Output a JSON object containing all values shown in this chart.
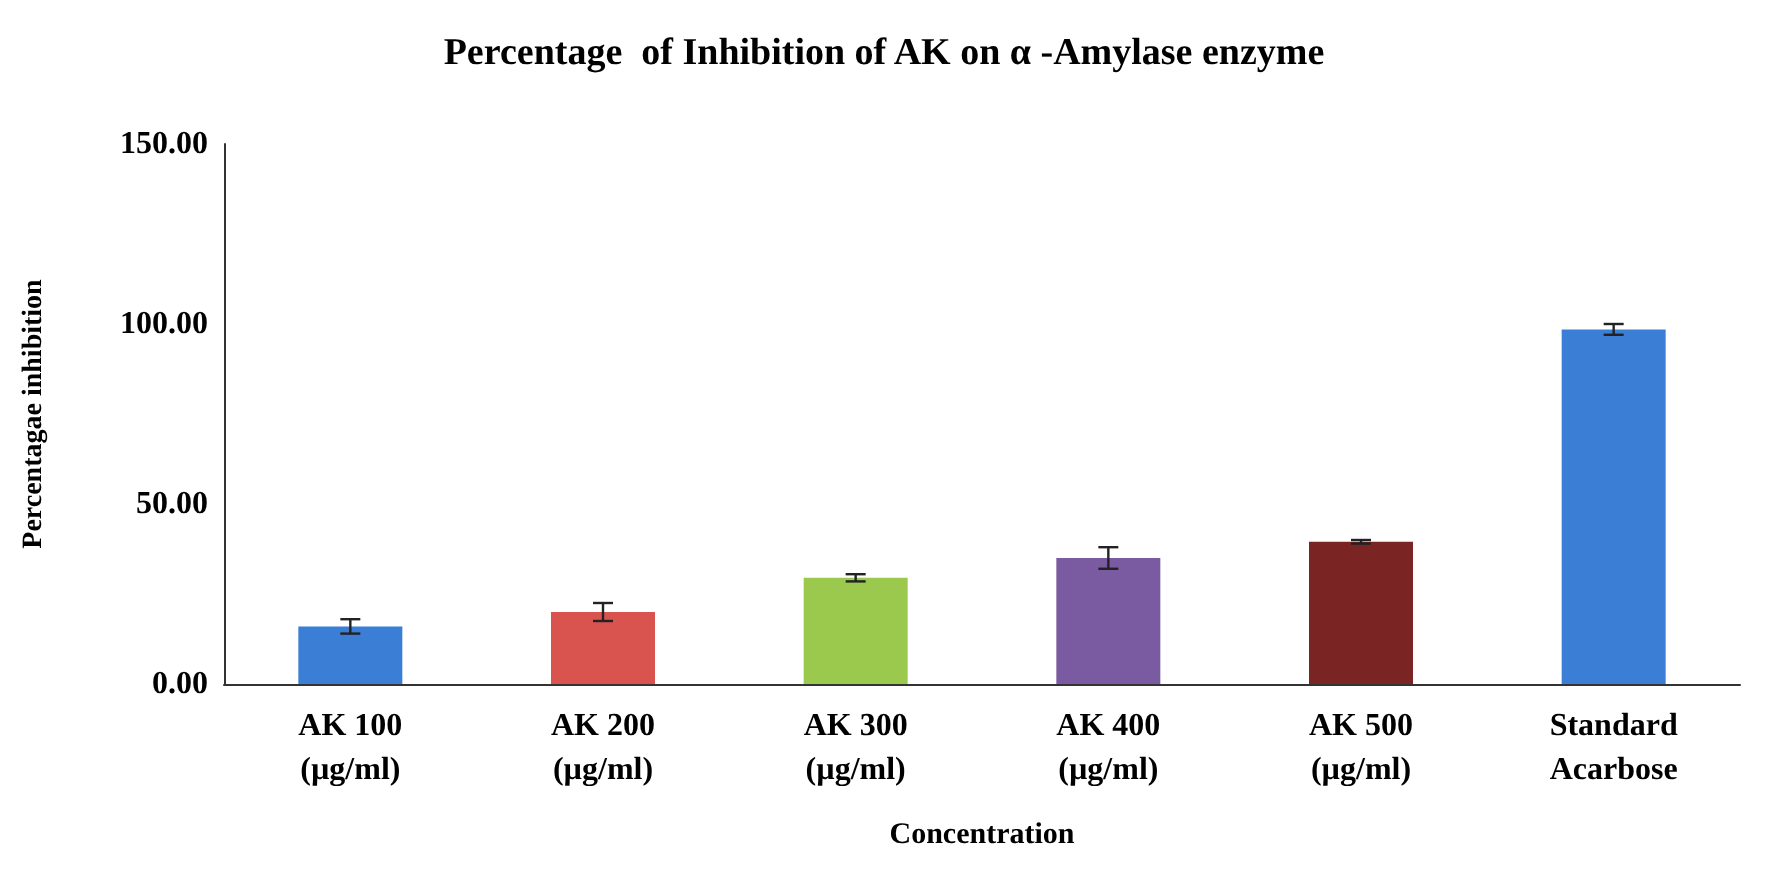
{
  "chart_data": {
    "type": "bar",
    "title": "Percentage  of Inhibition of AK on α -Amylase enzyme",
    "xlabel": "Concentration",
    "ylabel": "Percentagae inhibition",
    "categories": [
      "AK 100\n(µg/ml)",
      "AK 200\n(µg/ml)",
      "AK 300\n(µg/ml)",
      "AK 400\n(µg/ml)",
      "AK 500\n(µg/ml)",
      "Standard\nAcarbose"
    ],
    "values": [
      16,
      20,
      29.5,
      35,
      39.5,
      98.5
    ],
    "errors": [
      2,
      2.5,
      1,
      3,
      0.5,
      1.5
    ],
    "colors": [
      "#3a7fd5",
      "#d9534f",
      "#9bc94e",
      "#7a5aa0",
      "#7a2424",
      "#3a7fd5"
    ],
    "ylim": [
      0,
      150
    ],
    "yticks": [
      {
        "value": 0,
        "label": "0.00"
      },
      {
        "value": 50,
        "label": "50.00"
      },
      {
        "value": 100,
        "label": "100.00"
      },
      {
        "value": 150,
        "label": "150.00"
      }
    ],
    "grid": false
  }
}
